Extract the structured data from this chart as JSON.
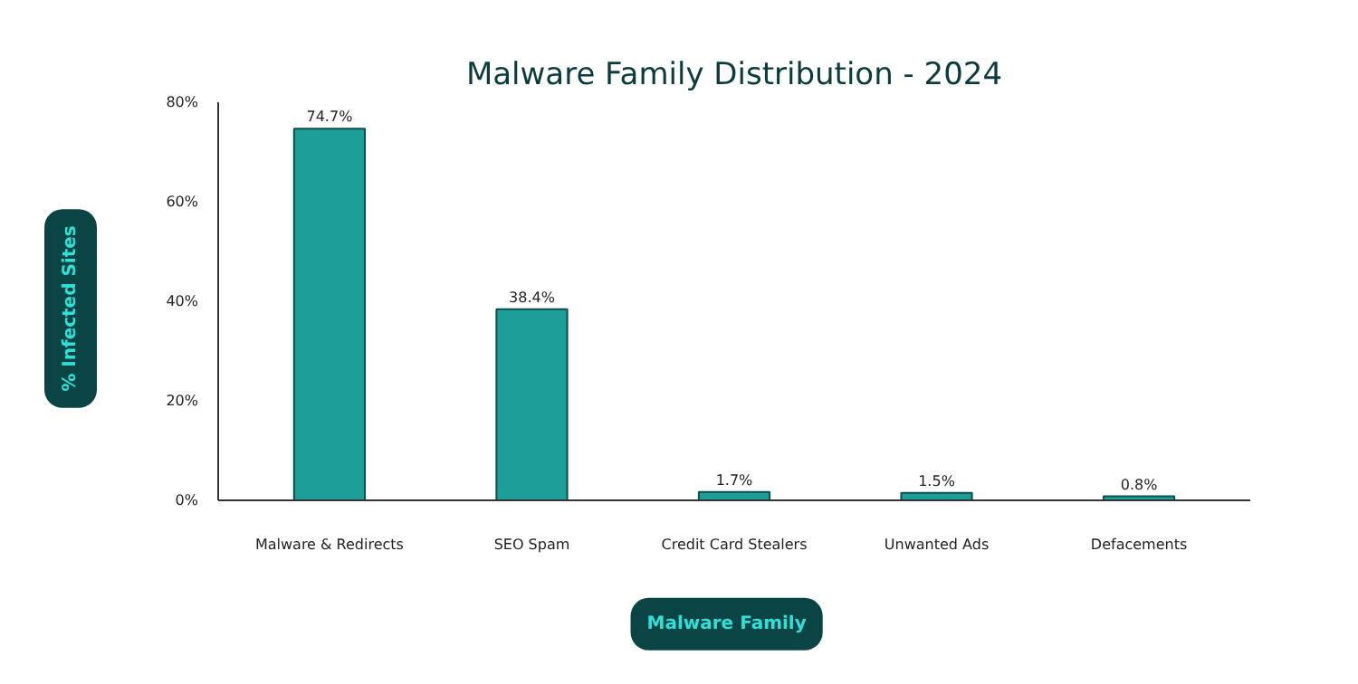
{
  "chart_data": {
    "type": "bar",
    "title": "Malware Family Distribution - 2024",
    "xlabel": "Malware Family",
    "ylabel": "% Infected Sites",
    "categories": [
      "Malware & Redirects",
      "SEO Spam",
      "Credit Card Stealers",
      "Unwanted Ads",
      "Defacements"
    ],
    "values": [
      74.7,
      38.4,
      1.7,
      1.5,
      0.8
    ],
    "color": "#1d9e98",
    "value_labels": [
      "74.7%",
      "38.4%",
      "1.7%",
      "1.5%",
      "0.8%"
    ],
    "ylim": [
      0,
      80
    ],
    "yticks": [
      {
        "value": 0,
        "label": "0%"
      },
      {
        "value": 20,
        "label": "20%"
      },
      {
        "value": 40,
        "label": "40%"
      },
      {
        "value": 60,
        "label": "60%"
      },
      {
        "value": 80,
        "label": "80%"
      }
    ],
    "grid": false
  }
}
